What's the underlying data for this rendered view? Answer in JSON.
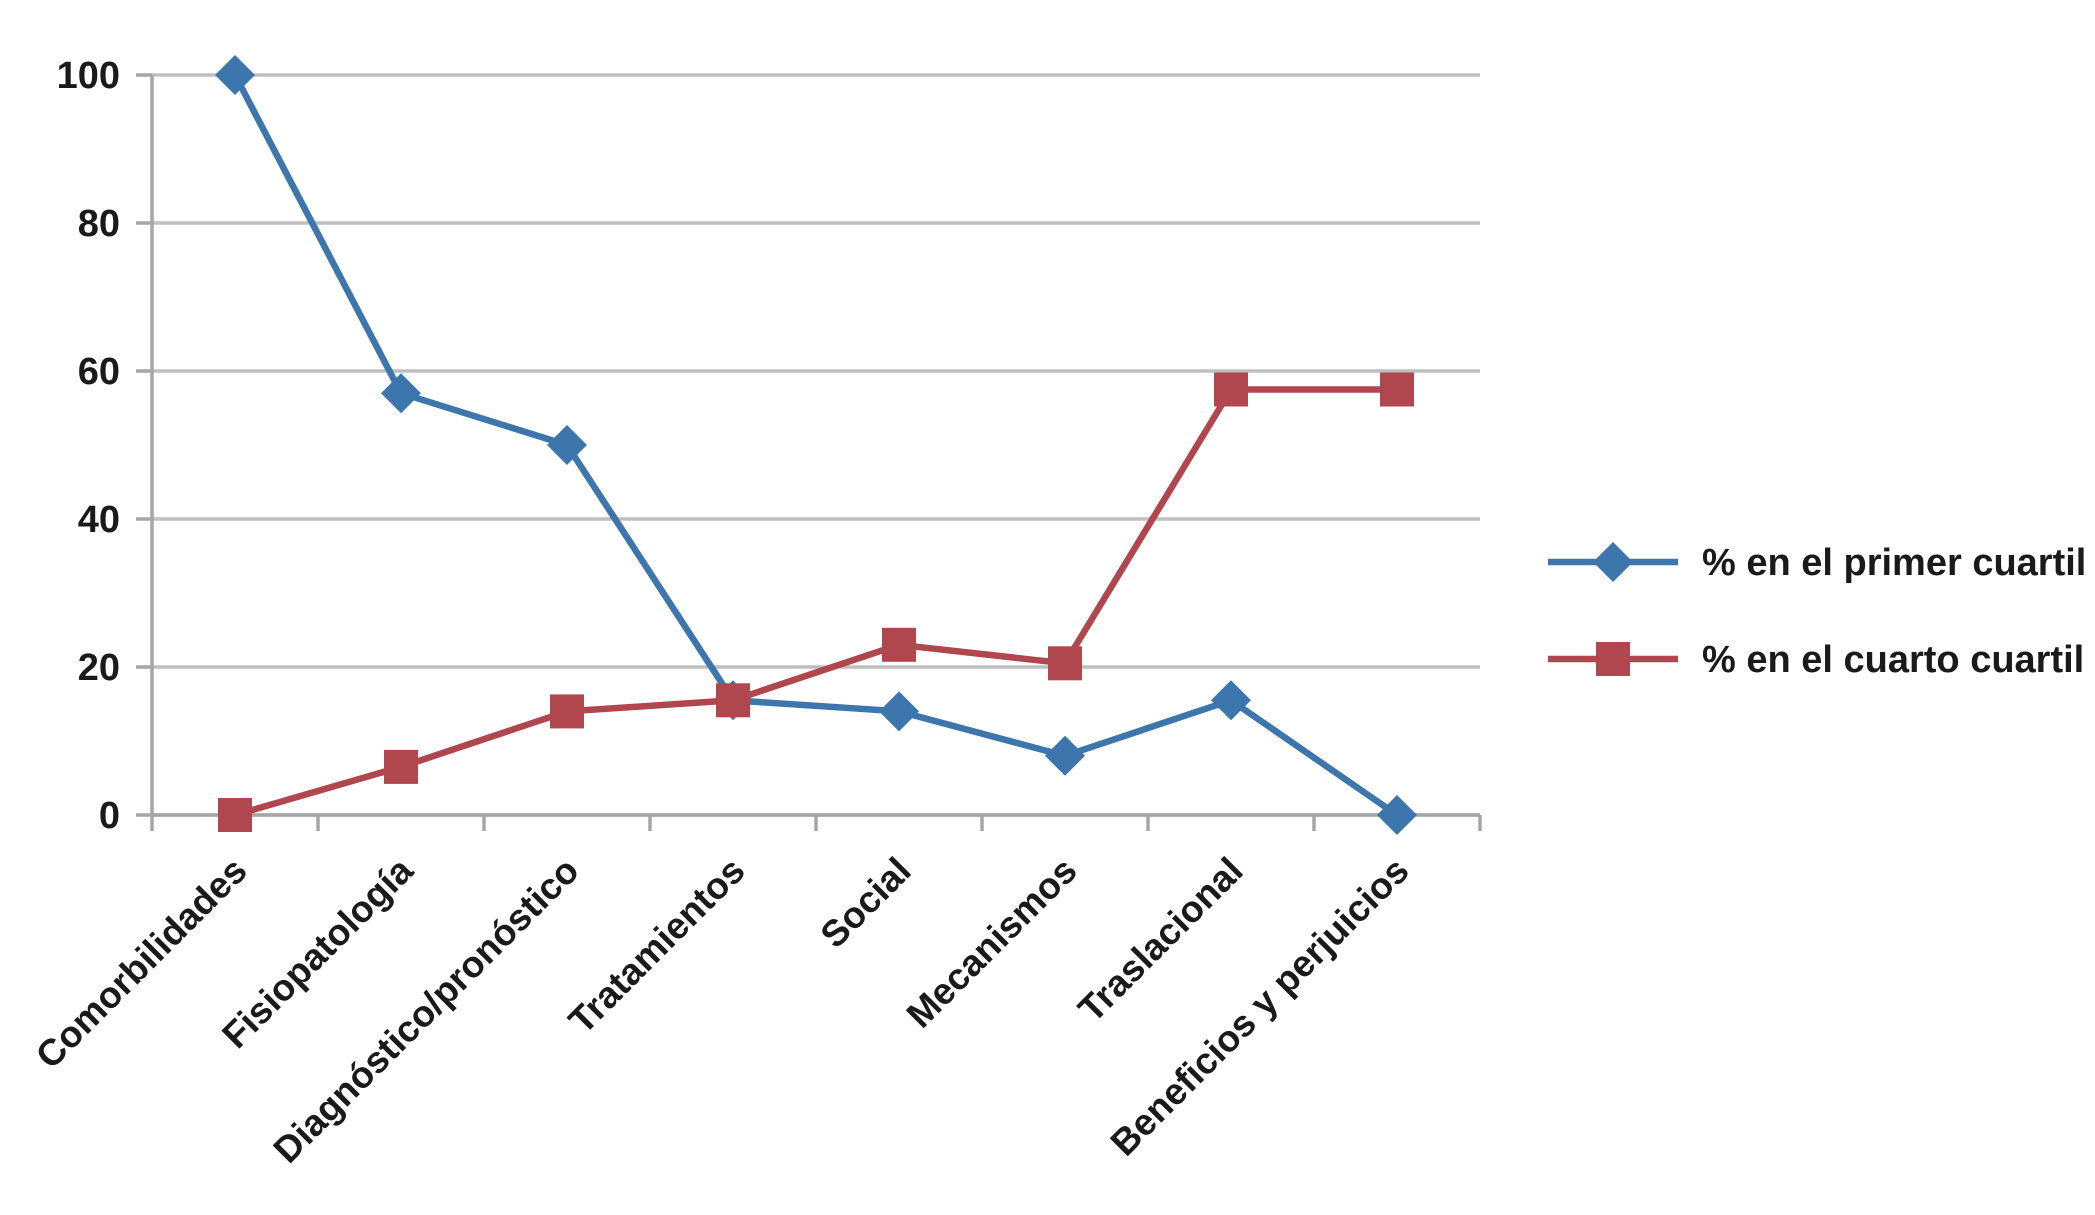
{
  "chart_data": {
    "type": "line",
    "title": "",
    "xlabel": "",
    "ylabel": "",
    "categories": [
      "Comorbilidades",
      "Fisiopatología",
      "Diagnóstico/pronóstico",
      "Tratamientos",
      "Social",
      "Mecanismos",
      "Traslacional",
      "Beneficios y perjuicios"
    ],
    "series": [
      {
        "name": "% en el primer cuartil",
        "marker": "diamond",
        "color": "#3C76AC",
        "values": [
          100,
          57,
          50,
          15.5,
          14,
          8,
          15.5,
          0
        ]
      },
      {
        "name": "% en el cuarto cuartil",
        "marker": "square",
        "color": "#B0464E",
        "values": [
          0,
          6.5,
          14,
          15.5,
          23,
          20.5,
          57.5,
          57.5
        ]
      }
    ],
    "ylim": [
      0,
      100
    ],
    "yticks": [
      0,
      20,
      40,
      60,
      80,
      100
    ],
    "grid": true,
    "legend_position": "right",
    "colors": {
      "grid": "#BFBFBF",
      "axis": "#A6A6A6",
      "text": "#1A1A1A"
    }
  }
}
